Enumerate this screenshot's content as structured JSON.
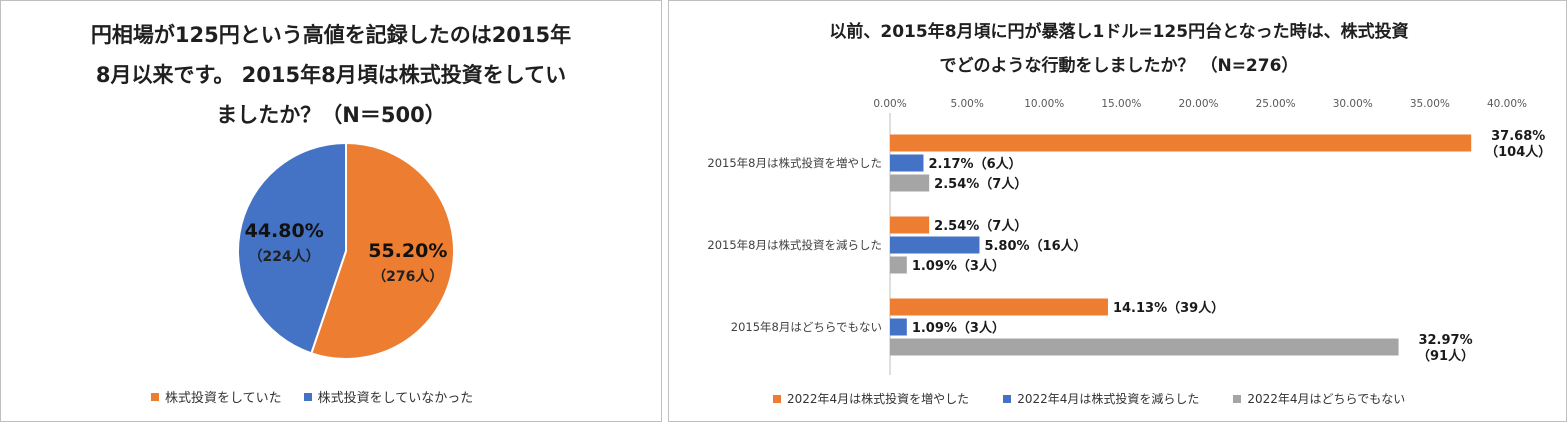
{
  "chart_data": [
    {
      "type": "pie",
      "title": "円相場が125円という高値を記録したのは2015年8月以来です。 2015年8月頃は株式投資をしていましたか？（N＝500）",
      "title_lines": [
        "円相場が125円という高値を記録したのは2015年",
        "8月以来です。 2015年8月頃は株式投資をしてい",
        "ましたか？（N＝500）"
      ],
      "slices": [
        {
          "label": "株式投資をしていた",
          "value": 55.2,
          "count": 276,
          "pct_label": "55.20%",
          "count_label": "（276人）",
          "color": "#ED7D31"
        },
        {
          "label": "株式投資をしていなかった",
          "value": 44.8,
          "count": 224,
          "pct_label": "44.80%",
          "count_label": "（224人）",
          "color": "#4472C4"
        }
      ],
      "legend_position": "bottom"
    },
    {
      "type": "bar",
      "orientation": "horizontal",
      "title": "以前、2015年8月頃に円が暴落し1ドル=125円台となった時は、株式投資でどのような行動をしましたか？ （N=276）",
      "title_lines": [
        "以前、2015年8月頃に円が暴落し1ドル=125円台となった時は、株式投資",
        "でどのような行動をしましたか？ （N=276）"
      ],
      "categories": [
        "2015年8月は株式投資を増やした",
        "2015年8月は株式投資を減らした",
        "2015年8月はどちらでもない"
      ],
      "series": [
        {
          "name": "2022年4月は株式投資を増やした",
          "color": "#ED7D31",
          "values": [
            37.68,
            2.54,
            14.13
          ],
          "labels": [
            [
              "37.68%",
              "（104人）"
            ],
            [
              "2.54%（7人）"
            ],
            [
              "14.13%（39人）"
            ]
          ]
        },
        {
          "name": "2022年4月は株式投資を減らした",
          "color": "#4472C4",
          "values": [
            2.17,
            5.8,
            1.09
          ],
          "labels": [
            [
              "2.17%（6人）"
            ],
            [
              "5.80%（16人）"
            ],
            [
              "1.09%（3人）"
            ]
          ]
        },
        {
          "name": "2022年4月はどちらでもない",
          "color": "#A5A5A5",
          "values": [
            2.54,
            1.09,
            32.97
          ],
          "labels": [
            [
              "2.54%（7人）"
            ],
            [
              "1.09%（3人）"
            ],
            [
              "32.97%",
              "（91人）"
            ]
          ]
        }
      ],
      "xlim": [
        0,
        40
      ],
      "xticks": [
        "0.00%",
        "5.00%",
        "10.00%",
        "15.00%",
        "20.00%",
        "25.00%",
        "30.00%",
        "35.00%",
        "40.00%"
      ],
      "legend_position": "bottom"
    }
  ]
}
